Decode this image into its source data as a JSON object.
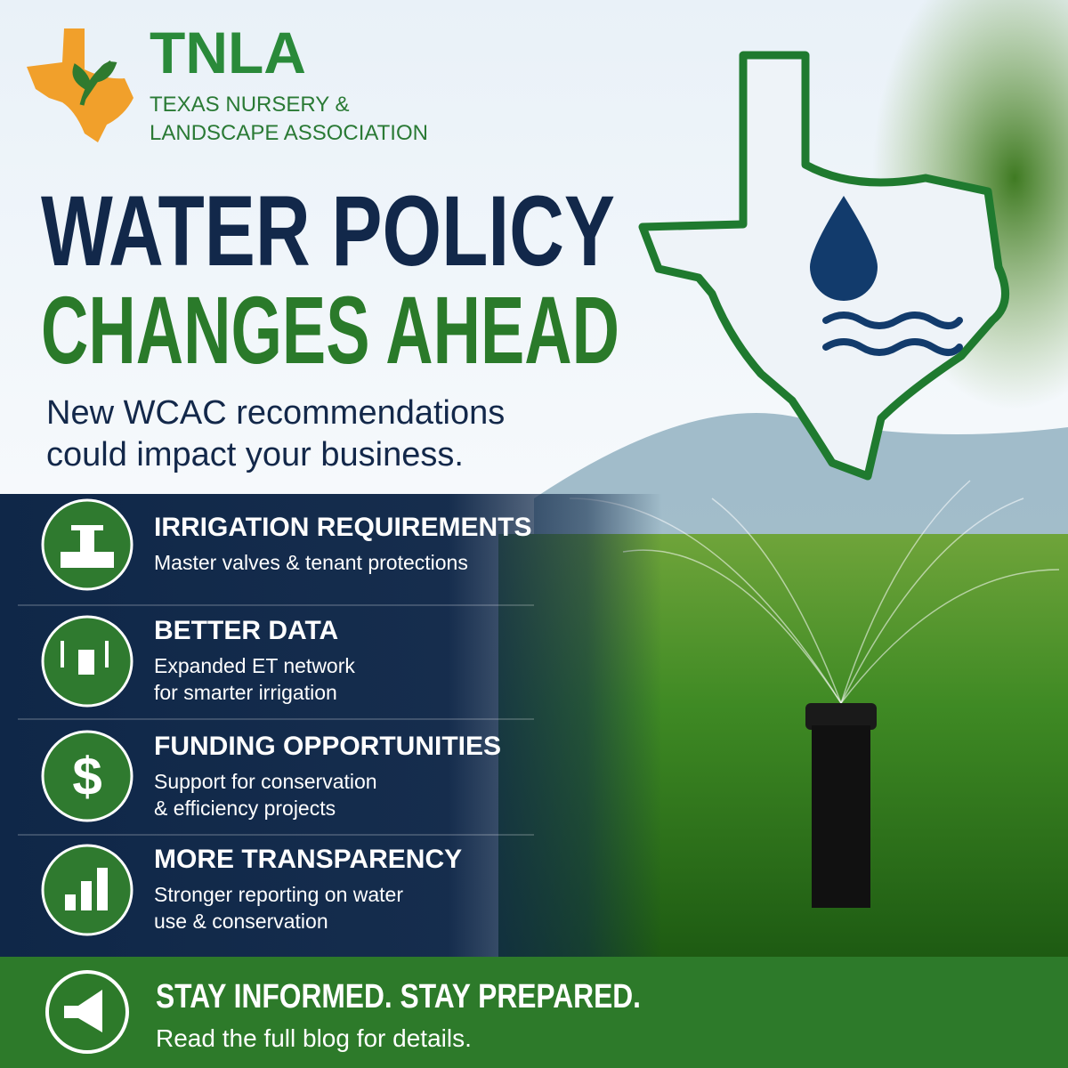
{
  "logo": {
    "abbr": "TNLA",
    "name_lines": [
      "TEXAS NURSERY &",
      "LANDSCAPE ASSOCIATION"
    ]
  },
  "headline": [
    "WATER POLICY",
    "CHANGES AHEAD"
  ],
  "subhead": [
    "New WCAC recommendations",
    "could impact your business."
  ],
  "items": [
    {
      "title": "IRRIGATION REQUIREMENTS",
      "lines": [
        "Master valves & tenant protections"
      ]
    },
    {
      "title": "BETTER DATA",
      "lines": [
        "Expanded ET network",
        "for smarter irrigation"
      ]
    },
    {
      "title": "FUNDING OPPORTUNITIES",
      "lines": [
        "Support for conservation",
        "& efficiency projects"
      ]
    },
    {
      "title": "MORE TRANSPARENCY",
      "lines": [
        "Stronger reporting on water",
        "use & conservation"
      ]
    }
  ],
  "footer": {
    "title": "STAY INFORMED. STAY PREPARED.",
    "text": "Read the full blog for details."
  }
}
